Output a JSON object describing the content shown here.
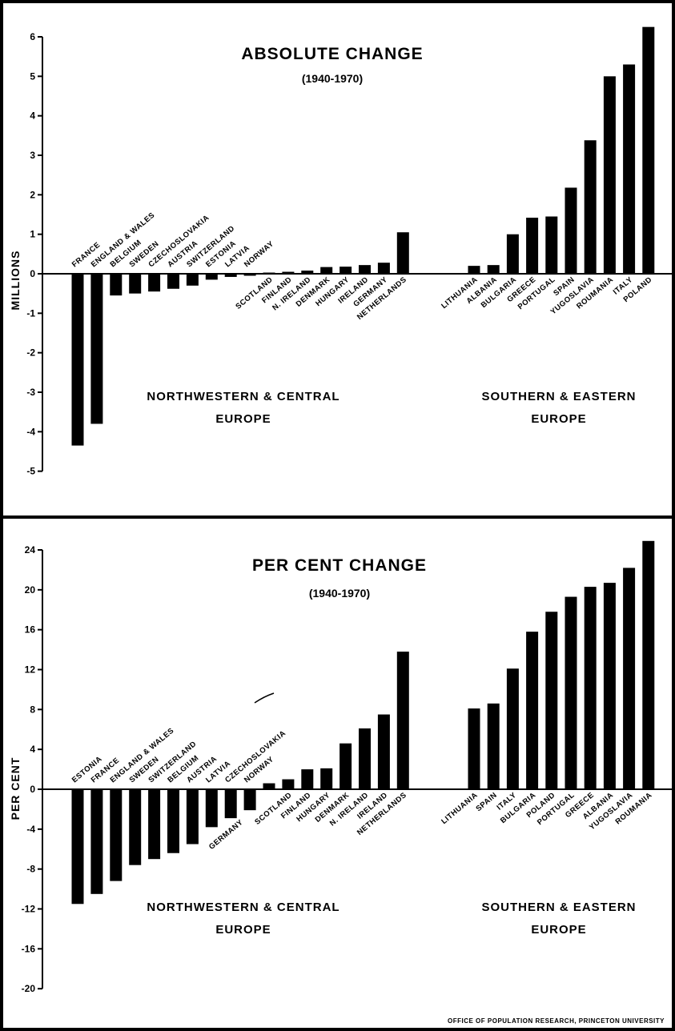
{
  "footer": "OFFICE OF POPULATION RESEARCH, PRINCETON UNIVERSITY",
  "chart_data": [
    {
      "type": "bar",
      "title": "ABSOLUTE CHANGE",
      "subtitle": "(1940-1970)",
      "ylabel": "MILLIONS",
      "ylim": [
        -5,
        6
      ],
      "yticks": [
        6,
        5,
        4,
        3,
        2,
        1,
        0,
        -1,
        -2,
        -3,
        -4,
        -5
      ],
      "groups": [
        "NORTHWESTERN & CENTRAL EUROPE",
        "SOUTHERN & EASTERN EUROPE"
      ],
      "categories": [
        "FRANCE",
        "ENGLAND & WALES",
        "BELGIUM",
        "SWEDEN",
        "CZECHOSLOVAKIA",
        "AUSTRIA",
        "SWITZERLAND",
        "ESTONIA",
        "LATVIA",
        "NORWAY",
        "SCOTLAND",
        "FINLAND",
        "N. IRELAND",
        "DENMARK",
        "HUNGARY",
        "IRELAND",
        "GERMANY",
        "NETHERLANDS",
        "LITHUANIA",
        "ALBANIA",
        "BULGARIA",
        "GREECE",
        "PORTUGAL",
        "SPAIN",
        "YUGOSLAVIA",
        "ROUMANIA",
        "ITALY",
        "POLAND"
      ],
      "category_group": [
        0,
        0,
        0,
        0,
        0,
        0,
        0,
        0,
        0,
        0,
        0,
        0,
        0,
        0,
        0,
        0,
        0,
        0,
        1,
        1,
        1,
        1,
        1,
        1,
        1,
        1,
        1,
        1
      ],
      "values": [
        -4.35,
        -3.8,
        -0.55,
        -0.5,
        -0.45,
        -0.38,
        -0.3,
        -0.15,
        -0.08,
        -0.05,
        0.03,
        0.05,
        0.08,
        0.17,
        0.18,
        0.22,
        0.28,
        1.05,
        0.2,
        0.22,
        1.0,
        1.42,
        1.45,
        2.18,
        3.38,
        5.0,
        5.3,
        6.25
      ]
    },
    {
      "type": "bar",
      "title": "PER CENT CHANGE",
      "subtitle": "(1940-1970)",
      "ylabel": "PER CENT",
      "ylim": [
        -20,
        24
      ],
      "yticks": [
        24,
        20,
        16,
        12,
        8,
        4,
        0,
        -4,
        -8,
        -12,
        -16,
        -20
      ],
      "groups": [
        "NORTHWESTERN & CENTRAL EUROPE",
        "SOUTHERN & EASTERN EUROPE"
      ],
      "categories": [
        "ESTONIA",
        "FRANCE",
        "ENGLAND & WALES",
        "SWEDEN",
        "SWITZERLAND",
        "BELGIUM",
        "AUSTRIA",
        "LATVIA",
        "CZECHOSLOVAKIA",
        "NORWAY",
        "GERMANY",
        "SCOTLAND",
        "FINLAND",
        "HUNGARY",
        "DENMARK",
        "N. IRELAND",
        "IRELAND",
        "NETHERLANDS",
        "LITHUANIA",
        "SPAIN",
        "ITALY",
        "BULGARIA",
        "POLAND",
        "PORTUGAL",
        "GREECE",
        "ALBANIA",
        "YUGOSLAVIA",
        "ROUMANIA"
      ],
      "category_group": [
        0,
        0,
        0,
        0,
        0,
        0,
        0,
        0,
        0,
        0,
        0,
        0,
        0,
        0,
        0,
        0,
        0,
        0,
        1,
        1,
        1,
        1,
        1,
        1,
        1,
        1,
        1,
        1
      ],
      "values": [
        -11.5,
        -10.5,
        -9.2,
        -7.6,
        -7.0,
        -6.4,
        -5.5,
        -3.8,
        -2.9,
        -2.1,
        0.6,
        1.0,
        2.0,
        2.1,
        4.6,
        6.1,
        7.5,
        13.8,
        8.1,
        8.6,
        12.1,
        15.8,
        17.8,
        19.3,
        20.3,
        20.7,
        22.2,
        24.9
      ]
    }
  ]
}
